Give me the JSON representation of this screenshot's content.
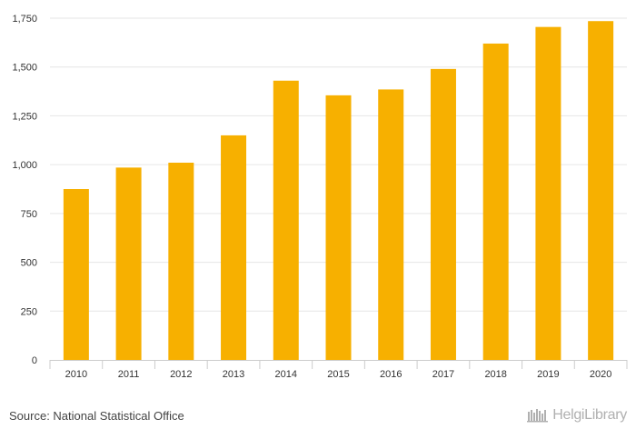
{
  "chart_data": {
    "type": "bar",
    "categories": [
      "2010",
      "2011",
      "2012",
      "2013",
      "2014",
      "2015",
      "2016",
      "2017",
      "2018",
      "2019",
      "2020"
    ],
    "values": [
      875,
      985,
      1010,
      1150,
      1430,
      1355,
      1385,
      1490,
      1620,
      1705,
      1735
    ],
    "ylim": [
      0,
      1750
    ],
    "yticks": [
      0,
      250,
      500,
      750,
      1000,
      1250,
      1500,
      1750
    ],
    "ytick_labels": [
      "0",
      "250",
      "500",
      "750",
      "1,000",
      "1,250",
      "1,500",
      "1,750"
    ],
    "bar_color": "#f7b000",
    "grid": true,
    "title": "",
    "xlabel": "",
    "ylabel": ""
  },
  "footer": {
    "source": "Source: National Statistical Office",
    "logo_text": "HelgiLibrary"
  },
  "colors": {
    "grid": "#e6e6e6",
    "axis": "#cccccc",
    "logo": "#b0b0b0"
  }
}
